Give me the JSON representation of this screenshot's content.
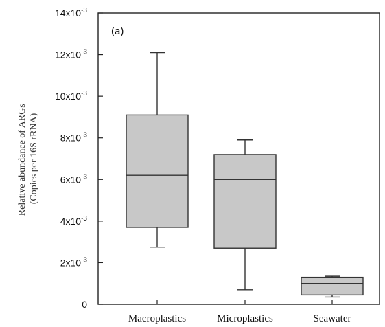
{
  "chart_data": {
    "type": "box",
    "panel_label": "(a)",
    "ylabel_line1": "Relative abundance of ARGs",
    "ylabel_line2": "(Copies per 16S rRNA)",
    "xlabel": "",
    "ylim": [
      0,
      0.014
    ],
    "yticks": [
      {
        "value": 0,
        "label": "0"
      },
      {
        "value": 0.002,
        "base": "2x10",
        "exp": "-3"
      },
      {
        "value": 0.004,
        "base": "4x10",
        "exp": "-3"
      },
      {
        "value": 0.006,
        "base": "6x10",
        "exp": "-3"
      },
      {
        "value": 0.008,
        "base": "8x10",
        "exp": "-3"
      },
      {
        "value": 0.01,
        "base": "10x10",
        "exp": "-3"
      },
      {
        "value": 0.012,
        "base": "12x10",
        "exp": "-3"
      },
      {
        "value": 0.014,
        "base": "14x10",
        "exp": "-3"
      }
    ],
    "categories": [
      "Macroplastics",
      "Microplastics",
      "Seawater"
    ],
    "boxes": [
      {
        "name": "Macroplastics",
        "min": 0.00275,
        "q1": 0.0037,
        "median": 0.0062,
        "q3": 0.0091,
        "max": 0.0121
      },
      {
        "name": "Microplastics",
        "min": 0.0007,
        "q1": 0.0027,
        "median": 0.006,
        "q3": 0.0072,
        "max": 0.0079
      },
      {
        "name": "Seawater",
        "min": 0.00035,
        "q1": 0.00045,
        "median": 0.001,
        "q3": 0.0013,
        "max": 0.00135
      }
    ],
    "box_color": "#c8c8c8",
    "grid": false
  }
}
